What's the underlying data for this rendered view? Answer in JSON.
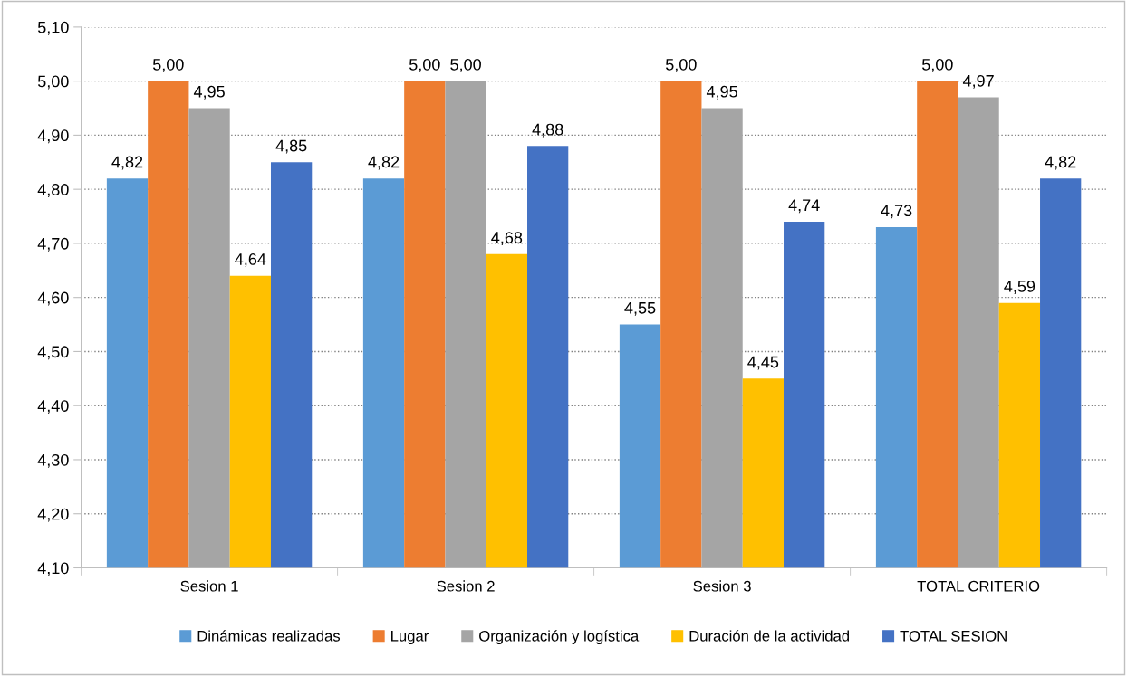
{
  "chart_data": {
    "type": "bar",
    "categories": [
      "Sesion 1",
      "Sesion 2",
      "Sesion 3",
      "TOTAL CRITERIO"
    ],
    "series": [
      {
        "name": "Dinámicas realizadas",
        "color": "#5b9bd5",
        "values": [
          4.82,
          4.82,
          4.55,
          4.73
        ],
        "value_labels": [
          "4,82",
          "4,82",
          "4,55",
          "4,73"
        ]
      },
      {
        "name": "Lugar",
        "color": "#ed7d31",
        "values": [
          5.0,
          5.0,
          5.0,
          5.0
        ],
        "value_labels": [
          "5,00",
          "5,00",
          "5,00",
          "5,00"
        ]
      },
      {
        "name": "Organización y logística",
        "color": "#a5a5a5",
        "values": [
          4.95,
          5.0,
          4.95,
          4.97
        ],
        "value_labels": [
          "4,95",
          "5,00",
          "4,95",
          "4,97"
        ]
      },
      {
        "name": "Duración de la actividad",
        "color": "#ffc000",
        "values": [
          4.64,
          4.68,
          4.45,
          4.59
        ],
        "value_labels": [
          "4,64",
          "4,68",
          "4,45",
          "4,59"
        ]
      },
      {
        "name": "TOTAL SESION",
        "color": "#4472c4",
        "values": [
          4.85,
          4.88,
          4.74,
          4.82
        ],
        "value_labels": [
          "4,85",
          "4,88",
          "4,74",
          "4,82"
        ]
      }
    ],
    "ylim": [
      4.1,
      5.1
    ],
    "yticks": [
      {
        "value": 4.1,
        "label": "4,10"
      },
      {
        "value": 4.2,
        "label": "4,20"
      },
      {
        "value": 4.3,
        "label": "4,30"
      },
      {
        "value": 4.4,
        "label": "4,40"
      },
      {
        "value": 4.5,
        "label": "4,50"
      },
      {
        "value": 4.6,
        "label": "4,60"
      },
      {
        "value": 4.7,
        "label": "4,70"
      },
      {
        "value": 4.8,
        "label": "4,80"
      },
      {
        "value": 4.9,
        "label": "4,90"
      },
      {
        "value": 5.0,
        "label": "5,00"
      },
      {
        "value": 5.1,
        "label": "5,10"
      }
    ],
    "grid": "y",
    "legend": "bottom"
  }
}
